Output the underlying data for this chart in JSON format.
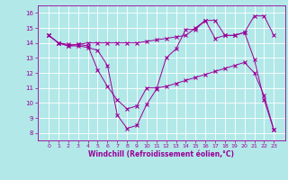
{
  "xlabel": "Windchill (Refroidissement éolien,°C)",
  "background_color": "#b2e8e8",
  "line_color": "#990099",
  "grid_color": "#ffffff",
  "x": [
    0,
    1,
    2,
    3,
    4,
    5,
    6,
    7,
    8,
    9,
    10,
    11,
    12,
    13,
    14,
    15,
    16,
    17,
    18,
    19,
    20,
    21,
    22,
    23
  ],
  "line1": [
    14.5,
    14.0,
    13.8,
    13.8,
    13.7,
    13.5,
    12.5,
    9.2,
    8.3,
    8.5,
    9.9,
    10.9,
    13.0,
    13.6,
    14.9,
    14.9,
    15.5,
    14.3,
    14.5,
    14.5,
    14.7,
    12.9,
    10.2,
    8.2
  ],
  "line2": [
    14.5,
    14.0,
    13.9,
    13.9,
    13.8,
    12.2,
    11.1,
    10.2,
    9.6,
    9.8,
    11.0,
    11.0,
    11.1,
    11.3,
    11.5,
    11.7,
    11.9,
    12.1,
    12.3,
    12.5,
    12.7,
    12.0,
    10.5,
    8.2
  ],
  "line3": [
    14.5,
    14.0,
    13.8,
    13.9,
    14.0,
    14.0,
    14.0,
    14.0,
    14.0,
    14.0,
    14.1,
    14.2,
    14.3,
    14.4,
    14.5,
    15.0,
    15.5,
    15.5,
    14.5,
    14.5,
    14.7,
    15.8,
    15.8,
    14.5
  ],
  "ylim": [
    7.5,
    16.5
  ],
  "yticks": [
    8,
    9,
    10,
    11,
    12,
    13,
    14,
    15,
    16
  ],
  "xticks": [
    0,
    1,
    2,
    3,
    4,
    5,
    6,
    7,
    8,
    9,
    10,
    11,
    12,
    13,
    14,
    15,
    16,
    17,
    18,
    19,
    20,
    21,
    22,
    23
  ],
  "figsize": [
    3.2,
    2.0
  ],
  "dpi": 100
}
